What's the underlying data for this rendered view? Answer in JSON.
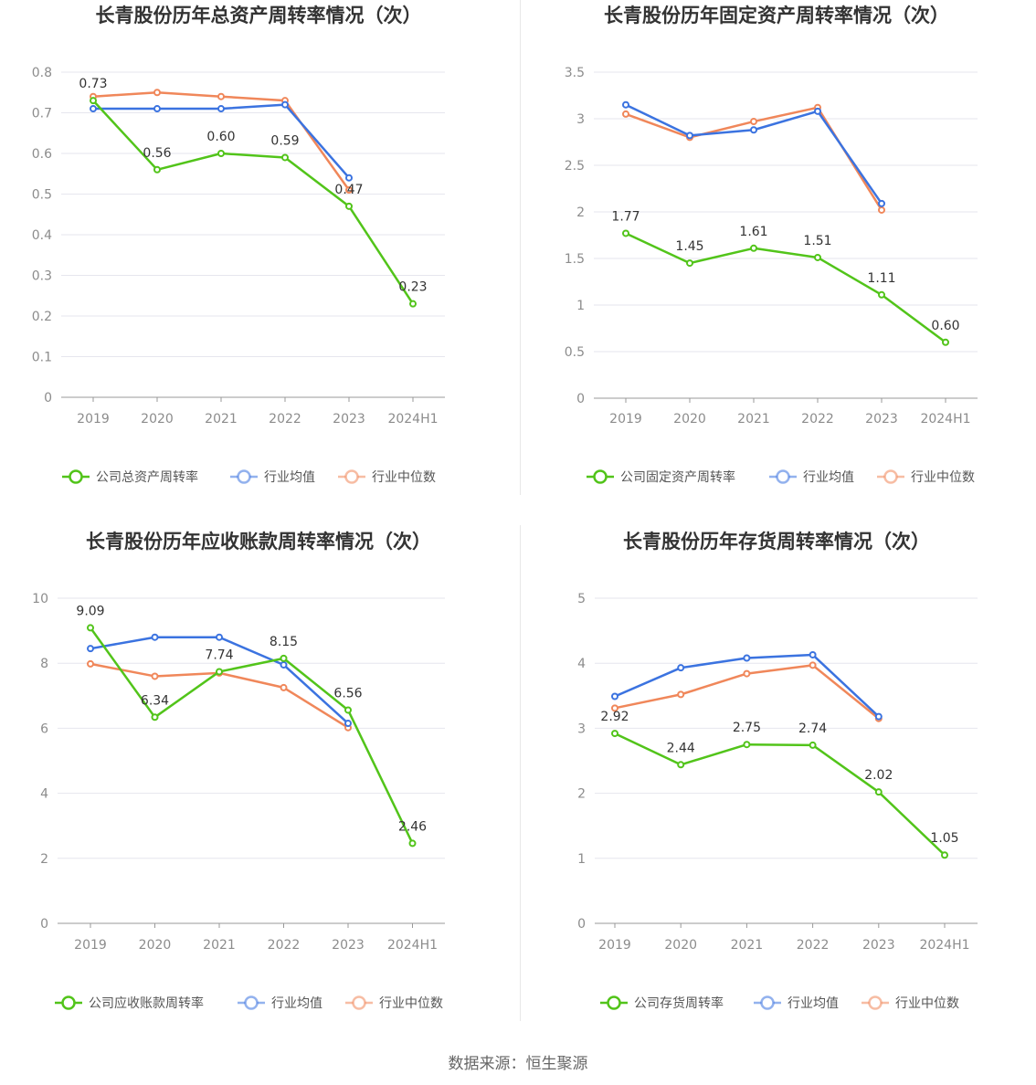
{
  "colors": {
    "company": "#52c41a",
    "average": "#3b73e0",
    "median": "#f0875a",
    "grid": "#e6e6ee",
    "axis": "#999999"
  },
  "legend": {
    "average": "行业均值",
    "median": "行业中位数"
  },
  "source": "数据来源：恒生聚源",
  "chart_data": [
    {
      "type": "line",
      "title": "长青股份历年总资产周转率情况（次）",
      "categories": [
        "2019",
        "2020",
        "2021",
        "2022",
        "2023",
        "2024H1"
      ],
      "ylim": [
        0,
        0.8
      ],
      "yticks": [
        "0",
        "0.1",
        "0.2",
        "0.3",
        "0.4",
        "0.5",
        "0.6",
        "0.7",
        "0.8"
      ],
      "series": [
        {
          "name": "公司总资产周转率",
          "key": "company",
          "values": [
            0.73,
            0.56,
            0.6,
            0.59,
            0.47,
            0.23
          ],
          "labels": [
            "0.73",
            "0.56",
            "0.60",
            "0.59",
            "0.47",
            "0.23"
          ]
        },
        {
          "name": "行业均值",
          "key": "average",
          "values": [
            0.71,
            0.71,
            0.71,
            0.72,
            0.54,
            null
          ]
        },
        {
          "name": "行业中位数",
          "key": "median",
          "values": [
            0.74,
            0.75,
            0.74,
            0.73,
            0.51,
            null
          ]
        }
      ],
      "grid": true,
      "legend_position": "bottom"
    },
    {
      "type": "line",
      "title": "长青股份历年固定资产周转率情况（次）",
      "categories": [
        "2019",
        "2020",
        "2021",
        "2022",
        "2023",
        "2024H1"
      ],
      "ylim": [
        0,
        3.5
      ],
      "yticks": [
        "0",
        "0.5",
        "1",
        "1.5",
        "2",
        "2.5",
        "3",
        "3.5"
      ],
      "series": [
        {
          "name": "公司固定资产周转率",
          "key": "company",
          "values": [
            1.77,
            1.45,
            1.61,
            1.51,
            1.11,
            0.6
          ],
          "labels": [
            "1.77",
            "1.45",
            "1.61",
            "1.51",
            "1.11",
            "0.60"
          ]
        },
        {
          "name": "行业均值",
          "key": "average",
          "values": [
            3.15,
            2.82,
            2.88,
            3.08,
            2.09,
            null
          ]
        },
        {
          "name": "行业中位数",
          "key": "median",
          "values": [
            3.05,
            2.8,
            2.97,
            3.12,
            2.02,
            null
          ]
        }
      ],
      "grid": true,
      "legend_position": "bottom"
    },
    {
      "type": "line",
      "title": "长青股份历年应收账款周转率情况（次）",
      "categories": [
        "2019",
        "2020",
        "2021",
        "2022",
        "2023",
        "2024H1"
      ],
      "ylim": [
        0,
        10
      ],
      "yticks": [
        "0",
        "2",
        "4",
        "6",
        "8",
        "10"
      ],
      "series": [
        {
          "name": "公司应收账款周转率",
          "key": "company",
          "values": [
            9.09,
            6.34,
            7.74,
            8.15,
            6.56,
            2.46
          ],
          "labels": [
            "9.09",
            "6.34",
            "7.74",
            "8.15",
            "6.56",
            "2.46"
          ]
        },
        {
          "name": "行业均值",
          "key": "average",
          "values": [
            8.45,
            8.8,
            8.8,
            7.95,
            6.15,
            null
          ]
        },
        {
          "name": "行业中位数",
          "key": "median",
          "values": [
            7.98,
            7.6,
            7.7,
            7.25,
            6.02,
            null
          ]
        }
      ],
      "grid": true,
      "legend_position": "bottom"
    },
    {
      "type": "line",
      "title": "长青股份历年存货周转率情况（次）",
      "categories": [
        "2019",
        "2020",
        "2021",
        "2022",
        "2023",
        "2024H1"
      ],
      "ylim": [
        0,
        5
      ],
      "yticks": [
        "0",
        "1",
        "2",
        "3",
        "4",
        "5"
      ],
      "series": [
        {
          "name": "公司存货周转率",
          "key": "company",
          "values": [
            2.92,
            2.44,
            2.75,
            2.74,
            2.02,
            1.05
          ],
          "labels": [
            "2.92",
            "2.44",
            "2.75",
            "2.74",
            "2.02",
            "1.05"
          ]
        },
        {
          "name": "行业均值",
          "key": "average",
          "values": [
            3.49,
            3.93,
            4.08,
            4.13,
            3.18,
            null
          ]
        },
        {
          "name": "行业中位数",
          "key": "median",
          "values": [
            3.31,
            3.52,
            3.84,
            3.97,
            3.15,
            null
          ]
        }
      ],
      "grid": true,
      "legend_position": "bottom"
    }
  ]
}
